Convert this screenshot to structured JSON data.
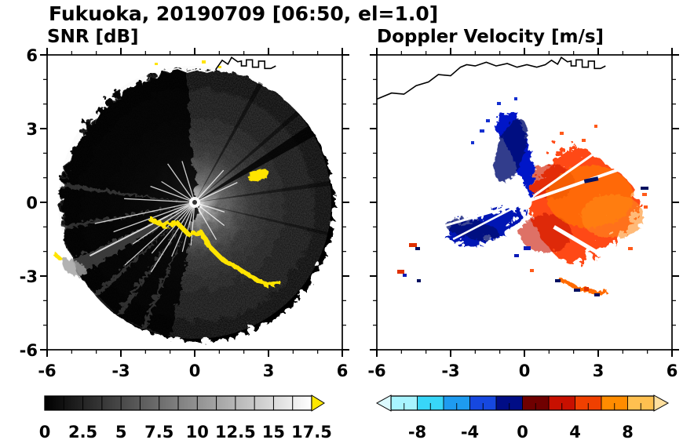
{
  "title": "Fukuoka, 20190709 [06:50, el=1.0]",
  "panels": {
    "snr": {
      "title": "SNR [dB]",
      "xticklabels": [
        "-6",
        "-3",
        "0",
        "3",
        "6"
      ],
      "yticklabels": [
        "6",
        "3",
        "0",
        "-3",
        "-6"
      ],
      "colorbar": {
        "min": 0,
        "max": 17.5,
        "tick_values": [
          0,
          2.5,
          5,
          7.5,
          10,
          12.5,
          15,
          17.5
        ],
        "tick_labels": [
          "0",
          "2.5",
          "5",
          "7.5",
          "10",
          "12.5",
          "15",
          "17.5"
        ],
        "minor_tick_step": 1.25,
        "start_color": "#000000",
        "end_color": "#ffffff",
        "overflow_arrow_color": "#ffe800"
      }
    },
    "doppler": {
      "title": "Doppler Velocity [m/s]",
      "xticklabels": [
        "-6",
        "-3",
        "0",
        "3",
        "6"
      ],
      "colorbar": {
        "min": -10,
        "max": 10,
        "tick_values": [
          -8,
          -4,
          0,
          4,
          8
        ],
        "tick_labels": [
          "-8",
          "-4",
          "0",
          "4",
          "8"
        ],
        "segment_colors": [
          "#a8f4ff",
          "#38d6f8",
          "#1e9bf0",
          "#1648e0",
          "#000d86",
          "#700000",
          "#c81000",
          "#f04000",
          "#ff8c00",
          "#ffc050"
        ],
        "underflow_arrow_color": "#dcfaff",
        "overflow_arrow_color": "#ffdf9e"
      }
    }
  },
  "chart_data": [
    {
      "type": "heatmap",
      "title": "SNR [dB]",
      "xlabel": "",
      "ylabel": "",
      "xlim": [
        -6,
        6
      ],
      "ylim": [
        -6,
        6
      ],
      "xticks": [
        -6,
        -3,
        0,
        3,
        6
      ],
      "yticks": [
        -6,
        -3,
        0,
        3,
        6
      ],
      "minor_tick_step": 1,
      "grid": false,
      "colorbar": {
        "range": [
          0,
          17.5
        ],
        "ticks": [
          0,
          2.5,
          5,
          7.5,
          10,
          12.5,
          15,
          17.5
        ],
        "minor_tick_step": 1.25,
        "colormap": "grayscale black(0) to white(17.5), yellow overflow arrow above 17.5"
      },
      "features": [
        "circular radar scan disk of radius ~5.5 centered at origin",
        "bright white echo and radial ray artifacts at radar site (0,0)",
        "SNR fades outward; right half shows gray speckle haze, left half mostly black shadow sectors",
        "narrow dark shadow spokes toward upper-right (~30 deg) and east",
        "gray beam cone toward (-5,-2.7) with brighter blob near the rim",
        "strong yellow (>17.5 dB) ground-clutter arc from about (-1.9,-0.6) through (0.6,-1.8) to (3.4,-3.2)",
        "isolated yellow echo near (2.5,1.1) and small yellow specks near top edge",
        "coastline traced across the top of the panel (white over the dark disk, black outside)"
      ]
    },
    {
      "type": "heatmap",
      "title": "Doppler Velocity [m/s]",
      "xlabel": "",
      "ylabel": "",
      "xlim": [
        -6,
        6
      ],
      "ylim": [
        -6,
        6
      ],
      "xticks": [
        -6,
        -3,
        0,
        3,
        6
      ],
      "yticks": [
        -6,
        -3,
        0,
        3,
        6
      ],
      "minor_tick_step": 1,
      "grid": false,
      "colorbar": {
        "range": [
          -10,
          10
        ],
        "ticks": [
          -8,
          -4,
          0,
          4,
          8
        ],
        "segment_step": 2,
        "colormap": "cyan-to-navy for negative velocities, dark-red-to-orange for positive, arrows both ends"
      },
      "features": [
        "large positive-velocity (red/orange, ~+2 to +6 m/s) ragged region east of radar out to ~4.5",
        "negative-velocity (blue/navy, ~-2 to -8 m/s) fan north of radar up to y~3.8",
        "negative-velocity wedge toward southwest out to ~(-3.4,-1.4) cut by thin white gaps",
        "white dot at radar site (0,0)",
        "mixed orange/navy clutter arc near (1.3,-3.1) to (3.3,-3.6)",
        "scattered small echoes near (-4.6,-1.8) and (-5.1,-2.9)",
        "black coastline traced across the top of the panel"
      ]
    }
  ]
}
